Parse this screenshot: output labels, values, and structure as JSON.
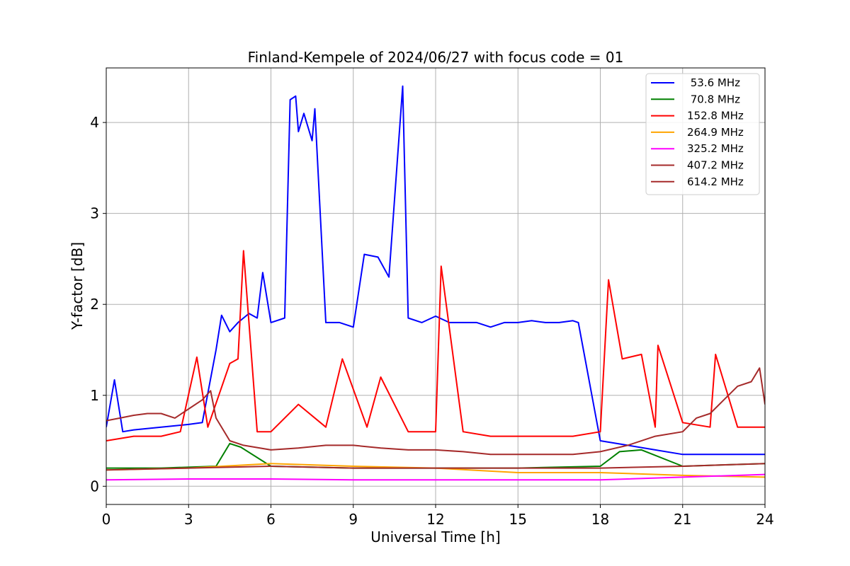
{
  "chart_data": {
    "type": "line",
    "title": "Finland-Kempele of 2024/06/27 with focus code = 01",
    "xlabel": "Universal Time [h]",
    "ylabel": "Y-factor [dB]",
    "xlim": [
      0,
      24
    ],
    "ylim": [
      -0.2,
      4.6
    ],
    "xticks": [
      0,
      3,
      6,
      9,
      12,
      15,
      18,
      21,
      24
    ],
    "yticks": [
      0,
      1,
      2,
      3,
      4
    ],
    "grid": true,
    "legend_position": "top-right",
    "series": [
      {
        "name": " 53.6 MHz",
        "color": "#0000ff",
        "x": [
          0,
          0.3,
          0.6,
          1,
          2,
          3,
          3.5,
          4,
          4.2,
          4.5,
          4.8,
          5.2,
          5.5,
          5.7,
          6,
          6.5,
          6.7,
          6.9,
          7.0,
          7.2,
          7.5,
          7.6,
          8,
          8.5,
          9,
          9.4,
          9.9,
          10.3,
          10.8,
          11,
          11.5,
          12,
          12.5,
          13,
          13.5,
          14,
          14.5,
          15,
          15.5,
          16,
          16.5,
          17,
          17.2,
          18,
          19,
          20,
          21,
          22,
          23,
          24
        ],
        "y": [
          0.65,
          1.17,
          0.6,
          0.62,
          0.65,
          0.68,
          0.7,
          1.5,
          1.88,
          1.7,
          1.8,
          1.9,
          1.85,
          2.35,
          1.8,
          1.85,
          4.25,
          4.29,
          3.9,
          4.1,
          3.8,
          4.15,
          1.8,
          1.8,
          1.75,
          2.55,
          2.52,
          2.3,
          4.4,
          1.85,
          1.8,
          1.87,
          1.8,
          1.8,
          1.8,
          1.75,
          1.8,
          1.8,
          1.82,
          1.8,
          1.8,
          1.82,
          1.8,
          0.5,
          0.45,
          0.4,
          0.35,
          0.35,
          0.35,
          0.35
        ]
      },
      {
        "name": " 70.8 MHz",
        "color": "#008000",
        "x": [
          0,
          2,
          4,
          4.5,
          4.9,
          6,
          9,
          12,
          15,
          18,
          18.7,
          19.5,
          21,
          24
        ],
        "y": [
          0.2,
          0.2,
          0.22,
          0.47,
          0.43,
          0.22,
          0.2,
          0.2,
          0.2,
          0.22,
          0.38,
          0.4,
          0.22,
          0.25
        ]
      },
      {
        "name": "152.8 MHz",
        "color": "#ff0000",
        "x": [
          0,
          1,
          2,
          2.7,
          3.3,
          3.7,
          4.5,
          4.8,
          5.0,
          5.5,
          6,
          7,
          8,
          8.6,
          9.5,
          10,
          11,
          12,
          12.2,
          13,
          14,
          15,
          16,
          17,
          18,
          18.3,
          18.8,
          19.5,
          20,
          20.1,
          21,
          22,
          22.2,
          23,
          24
        ],
        "y": [
          0.5,
          0.55,
          0.55,
          0.6,
          1.42,
          0.65,
          1.35,
          1.4,
          2.59,
          0.6,
          0.6,
          0.9,
          0.65,
          1.4,
          0.65,
          1.2,
          0.6,
          0.6,
          2.42,
          0.6,
          0.55,
          0.55,
          0.55,
          0.55,
          0.6,
          2.27,
          1.4,
          1.45,
          0.65,
          1.55,
          0.7,
          0.65,
          1.45,
          0.65,
          0.65
        ]
      },
      {
        "name": "264.9 MHz",
        "color": "#ffa500",
        "x": [
          0,
          3,
          6,
          9,
          12,
          15,
          18,
          21,
          24
        ],
        "y": [
          0.18,
          0.2,
          0.25,
          0.22,
          0.2,
          0.15,
          0.15,
          0.12,
          0.1
        ]
      },
      {
        "name": "325.2 MHz",
        "color": "#ff00ff",
        "x": [
          0,
          3,
          6,
          9,
          12,
          15,
          18,
          21,
          24
        ],
        "y": [
          0.07,
          0.08,
          0.08,
          0.07,
          0.07,
          0.07,
          0.07,
          0.1,
          0.13
        ]
      },
      {
        "name": "407.2 MHz",
        "color": "#a52a2a",
        "x": [
          0,
          3,
          6,
          9,
          12,
          15,
          18,
          21,
          24
        ],
        "y": [
          0.18,
          0.2,
          0.22,
          0.2,
          0.2,
          0.2,
          0.2,
          0.22,
          0.25
        ]
      },
      {
        "name": "614.2 MHz",
        "color": "#a52a2a",
        "x": [
          0,
          0.5,
          1,
          1.5,
          2,
          2.5,
          3,
          3.5,
          3.8,
          4,
          4.5,
          5,
          6,
          7,
          8,
          9,
          10,
          11,
          12,
          13,
          14,
          15,
          16,
          17,
          18,
          19,
          20,
          21,
          21.5,
          22,
          22.5,
          23,
          23.5,
          23.8,
          24
        ],
        "y": [
          0.72,
          0.75,
          0.78,
          0.8,
          0.8,
          0.75,
          0.85,
          0.95,
          1.05,
          0.75,
          0.5,
          0.45,
          0.4,
          0.42,
          0.45,
          0.45,
          0.42,
          0.4,
          0.4,
          0.38,
          0.35,
          0.35,
          0.35,
          0.35,
          0.38,
          0.45,
          0.55,
          0.6,
          0.75,
          0.8,
          0.95,
          1.1,
          1.15,
          1.3,
          0.9
        ]
      }
    ]
  }
}
